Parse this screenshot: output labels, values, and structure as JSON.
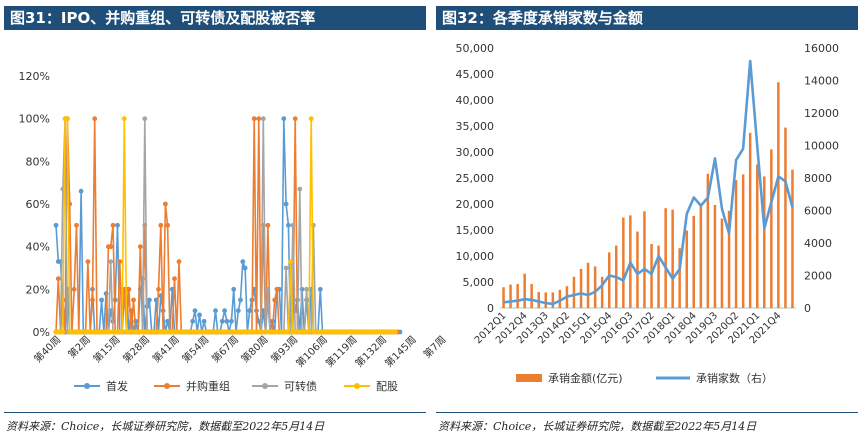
{
  "panels": {
    "left": {
      "title": "图31：IPO、并购重组、可转债及配股被否率",
      "source": "资料来源：Choice，长城证券研究院，数据截至2022年5月14日"
    },
    "right": {
      "title": "图32：各季度承销家数与金额",
      "source": "资料来源：Choice，长城证券研究院，数据截至2022年5月14日"
    }
  },
  "chart_data": [
    {
      "type": "line",
      "title": "IPO、并购重组、可转债及配股被否率",
      "ylim": [
        0,
        1.2
      ],
      "yticks": [
        "0%",
        "20%",
        "40%",
        "60%",
        "80%",
        "100%",
        "120%"
      ],
      "xticks": [
        "第40周",
        "第2周",
        "第15周",
        "第28周",
        "第41周",
        "第54周",
        "第67周",
        "第80周",
        "第93周",
        "第106周",
        "第119周",
        "第132周",
        "第145周",
        "第7周"
      ],
      "x_count": 152,
      "colors": {
        "首发": "#5b9bd5",
        "并购重组": "#ed7d31",
        "可转债": "#a5a5a5",
        "配股": "#ffc000"
      },
      "series": [
        {
          "name": "首发",
          "values": [
            0.5,
            0.33,
            0.33,
            0.1,
            0,
            0.2,
            0,
            0,
            0,
            0,
            0,
            0.66,
            0,
            0,
            0,
            0,
            0.2,
            0,
            0,
            0,
            0.15,
            0,
            0.18,
            0,
            0.1,
            0.05,
            0.15,
            0.5,
            0,
            0,
            0.18,
            0.2,
            0,
            0.1,
            0,
            0.05,
            0,
            0.2,
            0.25,
            0,
            0.12,
            0.15,
            0,
            0,
            0.15,
            0,
            0.17,
            0.1,
            0,
            0.05,
            0,
            0.2,
            0,
            0,
            0,
            0,
            0,
            0,
            0,
            0,
            0.05,
            0.1,
            0,
            0.08,
            0,
            0.05,
            0,
            0,
            0,
            0,
            0.1,
            0,
            0,
            0.05,
            0.1,
            0.05,
            0,
            0.05,
            0.2,
            0,
            0.1,
            0.15,
            0.33,
            0.3,
            0,
            0.1,
            0.15,
            0.2,
            0.1,
            0.05,
            0,
            0.1,
            0,
            0.15,
            0,
            0.05,
            0,
            0.2,
            0.2,
            0,
            1.0,
            0.6,
            0.5,
            0,
            0.2,
            0.1,
            0.15,
            0,
            0.2,
            0,
            0.15,
            0,
            0.2,
            0,
            0,
            0,
            0.2,
            0,
            0,
            0,
            0,
            0,
            0,
            0,
            0,
            0,
            0,
            0,
            0,
            0,
            0,
            0,
            0,
            0,
            0,
            0,
            0,
            0,
            0,
            0,
            0,
            0,
            0,
            0,
            0,
            0,
            0,
            0,
            0,
            0,
            0,
            0
          ]
        },
        {
          "name": "并购重组",
          "values": [
            0,
            0.25,
            0,
            0.15,
            0,
            1.0,
            0.6,
            0,
            0.2,
            0.5,
            0,
            0,
            0,
            0,
            0.33,
            0,
            0.15,
            1.0,
            0,
            0,
            0,
            0,
            0,
            0.4,
            0.4,
            0.5,
            0,
            0,
            0.33,
            0,
            0.2,
            0,
            0.2,
            0,
            0.15,
            0,
            0,
            0.4,
            0,
            0.5,
            0,
            0,
            0,
            0,
            0,
            0.2,
            0.5,
            0,
            0.6,
            0.5,
            0,
            0,
            0.25,
            0,
            0.33,
            0,
            0,
            0,
            0,
            0,
            0,
            0,
            0,
            0,
            0,
            0,
            0,
            0,
            0,
            0,
            0,
            0,
            0,
            0,
            0,
            0,
            0,
            0,
            0,
            0,
            0,
            0,
            0,
            0,
            0,
            0,
            0,
            1.0,
            0,
            1.0,
            0,
            0.5,
            0,
            0.5,
            0,
            0,
            0.15,
            0.2,
            0,
            0,
            0,
            0,
            0,
            0,
            0,
            1.0,
            0,
            0,
            0,
            0,
            0,
            0,
            0,
            0,
            0,
            0,
            0,
            0,
            0,
            0,
            0,
            0,
            0,
            0,
            0,
            0,
            0,
            0,
            0,
            0,
            0,
            0,
            0,
            0,
            0,
            0,
            0,
            0,
            0,
            0,
            0,
            0,
            0,
            0,
            0,
            0,
            0,
            0,
            0,
            0,
            0
          ]
        },
        {
          "name": "可转债",
          "values": [
            0,
            0,
            0,
            0.67,
            1.0,
            0,
            0,
            0,
            0,
            0,
            0,
            0,
            0,
            0,
            0,
            0,
            0,
            0,
            0,
            0,
            0,
            0,
            0,
            0,
            0.33,
            0,
            0,
            0,
            0,
            0,
            0,
            0,
            0,
            0,
            0,
            0,
            0,
            0,
            0,
            1.0,
            0,
            0,
            0,
            0,
            0,
            0,
            0,
            0,
            0,
            0,
            0,
            0,
            0,
            0,
            0,
            0,
            0,
            0,
            0,
            0,
            0,
            0,
            0,
            0,
            0,
            0,
            0,
            0,
            0,
            0,
            0,
            0,
            0,
            0,
            0,
            0,
            0,
            0,
            0,
            0,
            0,
            0,
            0,
            0,
            0,
            0,
            0,
            0,
            0,
            0,
            0,
            1.0,
            0,
            0.2,
            0,
            0,
            0,
            0,
            0,
            0,
            0,
            0.3,
            0,
            0,
            0.5,
            0,
            0,
            0.67,
            0,
            0,
            0.2,
            0,
            0,
            0.5,
            0,
            0,
            0,
            0,
            0,
            0,
            0,
            0,
            0,
            0,
            0,
            0,
            0,
            0,
            0,
            0,
            0,
            0,
            0,
            0,
            0,
            0,
            0,
            0,
            0,
            0,
            0,
            0,
            0,
            0,
            0,
            0,
            0,
            0
          ]
        },
        {
          "name": "配股",
          "values": [
            0,
            0,
            0,
            0,
            1.0,
            1.0,
            0,
            0,
            0,
            0,
            0,
            0,
            0,
            0,
            0,
            0,
            0,
            0,
            0,
            0,
            0,
            0,
            0,
            0,
            0,
            0,
            0,
            0,
            0,
            0,
            1.0,
            0,
            0,
            0,
            0,
            0,
            0,
            0,
            0,
            0,
            0,
            0,
            0,
            0,
            0,
            0,
            0,
            0,
            0,
            0,
            0,
            0,
            0,
            0,
            0,
            0,
            0,
            0,
            0,
            0,
            0,
            0,
            0,
            0,
            0,
            0,
            0,
            0,
            0,
            0,
            0,
            0,
            0,
            0,
            0,
            0,
            0,
            0,
            0,
            0,
            0,
            0,
            0,
            0,
            0,
            0,
            0,
            0,
            0,
            0,
            0,
            0,
            0,
            0,
            0,
            0,
            0,
            0,
            0,
            0,
            0,
            0,
            0,
            0.33,
            0,
            0,
            0,
            0,
            0,
            0,
            0,
            0,
            1.0,
            0,
            0,
            0,
            0,
            0,
            0,
            0,
            0,
            0,
            0,
            0,
            0,
            0,
            0,
            0,
            0,
            0,
            0,
            0,
            0,
            0,
            0,
            0,
            0,
            0,
            0,
            0,
            0,
            0,
            0,
            0,
            0,
            0,
            0,
            0,
            0,
            0
          ]
        }
      ],
      "legend": [
        "首发",
        "并购重组",
        "可转债",
        "配股"
      ],
      "legend_position": "bottom"
    },
    {
      "type": "bar-line",
      "title": "各季度承销家数与金额",
      "categories": [
        "2012Q1",
        "2012Q2",
        "2012Q3",
        "2012Q4",
        "2013Q1",
        "2013Q2",
        "2013Q3",
        "2013Q4",
        "2014Q1",
        "2014Q2",
        "2014Q3",
        "2014Q4",
        "2015Q1",
        "2015Q2",
        "2015Q3",
        "2015Q4",
        "2016Q1",
        "2016Q2",
        "2016Q3",
        "2016Q4",
        "2017Q1",
        "2017Q2",
        "2017Q3",
        "2017Q4",
        "2018Q1",
        "2018Q2",
        "2018Q3",
        "2018Q4",
        "2019Q1",
        "2019Q2",
        "2019Q3",
        "2019Q4",
        "2020Q1",
        "2020Q2",
        "2020Q3",
        "2020Q4",
        "2021Q1",
        "2021Q2",
        "2021Q3",
        "2021Q4",
        "2022Q1",
        "2022Q2"
      ],
      "xtick_labels": [
        "2012Q1",
        "",
        "",
        "2012Q4",
        "",
        "",
        "2013Q3",
        "",
        "",
        "2014Q2",
        "",
        "",
        "2015Q1",
        "",
        "",
        "2015Q4",
        "",
        "",
        "2016Q3",
        "",
        "",
        "2017Q2",
        "",
        "",
        "2018Q1",
        "",
        "",
        "2018Q4",
        "",
        "",
        "2019Q3",
        "",
        "",
        "2020Q2",
        "",
        "",
        "2021Q1",
        "",
        "",
        "2021Q4",
        "",
        ""
      ],
      "left_axis": {
        "ylim": [
          0,
          50000
        ],
        "yticks": [
          "0",
          "5,000",
          "10,000",
          "15,000",
          "20,000",
          "25,000",
          "30,000",
          "35,000",
          "40,000",
          "45,000",
          "50,000"
        ]
      },
      "right_axis": {
        "ylim": [
          0,
          16000
        ],
        "yticks": [
          "0",
          "2000",
          "4000",
          "6000",
          "8000",
          "10000",
          "12000",
          "14000",
          "16000"
        ]
      },
      "series": [
        {
          "name": "承销金额(亿元)",
          "axis": "left",
          "type": "bar",
          "color": "#ed7d31",
          "values": [
            4000,
            4500,
            4600,
            6600,
            4600,
            3100,
            3000,
            3000,
            3500,
            4200,
            6000,
            7500,
            8700,
            8000,
            6000,
            10700,
            12000,
            17400,
            17800,
            14700,
            18600,
            12300,
            12000,
            19200,
            18900,
            11500,
            14900,
            17700,
            19700,
            25800,
            19800,
            17200,
            18700,
            24600,
            25700,
            33700,
            27600,
            25300,
            30500,
            43400,
            34700,
            26600
          ]
        },
        {
          "name": "承销家数（右）",
          "axis": "right",
          "type": "line",
          "color": "#5b9bd5",
          "values": [
            350,
            400,
            450,
            550,
            500,
            400,
            300,
            250,
            450,
            700,
            800,
            900,
            800,
            1000,
            1400,
            2000,
            1900,
            1700,
            2800,
            2100,
            2400,
            2100,
            3200,
            2500,
            1800,
            2400,
            5800,
            6800,
            6300,
            6800,
            9200,
            6100,
            4600,
            9100,
            9800,
            15200,
            10000,
            4900,
            6500,
            8100,
            7800,
            6200
          ]
        }
      ],
      "legend": [
        "承销金额(亿元)",
        "承销家数（右）"
      ],
      "legend_position": "bottom"
    }
  ]
}
